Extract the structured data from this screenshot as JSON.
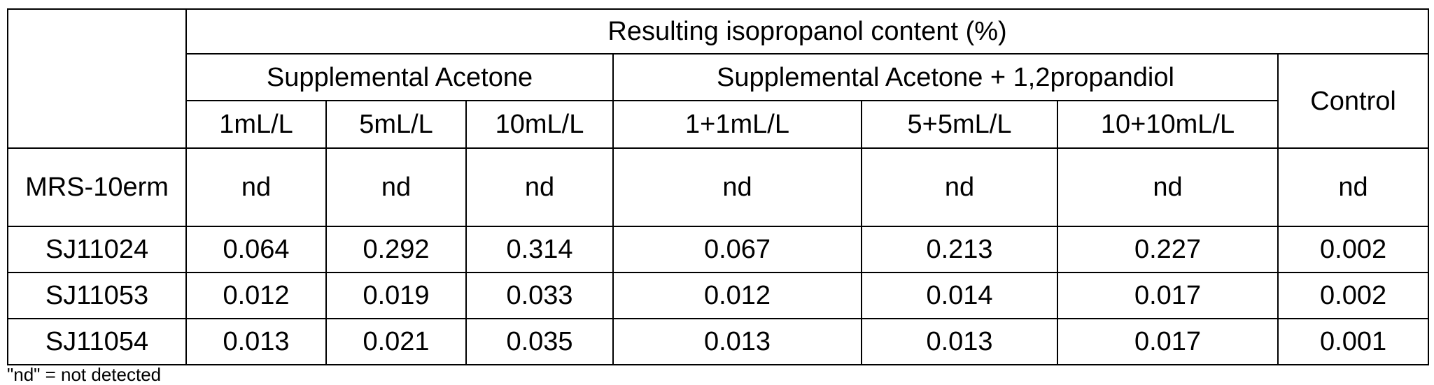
{
  "table": {
    "header_top": "Resulting isopropanol content (%)",
    "group_acetone": "Supplemental Acetone",
    "group_acetone_propandiol": "Supplemental Acetone + 1,2propandiol",
    "group_control": "Control",
    "columns": [
      "1mL/L",
      "5mL/L",
      "10mL/L",
      "1+1mL/L",
      "5+5mL/L",
      "10+10mL/L"
    ],
    "rows": [
      {
        "label": "MRS-10erm",
        "values": [
          "nd",
          "nd",
          "nd",
          "nd",
          "nd",
          "nd",
          "nd"
        ]
      },
      {
        "label": "SJ11024",
        "values": [
          "0.064",
          "0.292",
          "0.314",
          "0.067",
          "0.213",
          "0.227",
          "0.002"
        ]
      },
      {
        "label": "SJ11053",
        "values": [
          "0.012",
          "0.019",
          "0.033",
          "0.012",
          "0.014",
          "0.017",
          "0.002"
        ]
      },
      {
        "label": "SJ11054",
        "values": [
          "0.013",
          "0.021",
          "0.035",
          "0.013",
          "0.013",
          "0.017",
          "0.001"
        ]
      }
    ]
  },
  "footnote": "\"nd\" = not detected"
}
